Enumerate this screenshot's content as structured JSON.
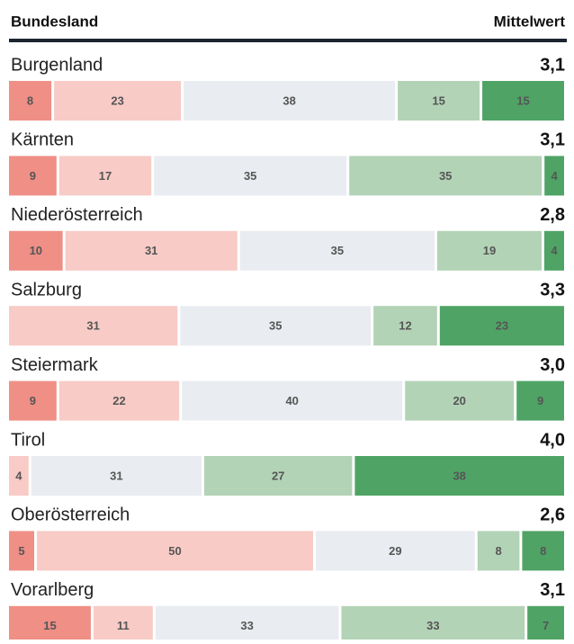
{
  "chart_data": {
    "type": "bar",
    "orientation": "horizontal",
    "stacked": true,
    "category_header": "Bundesland",
    "mean_header": "Mittelwert",
    "categories": [
      "Burgenland",
      "Kärnten",
      "Niederösterreich",
      "Salzburg",
      "Steiermark",
      "Tirol",
      "Oberösterreich",
      "Vorarlberg"
    ],
    "series": [
      {
        "color": "#ef8f86",
        "values": [
          8,
          9,
          10,
          null,
          9,
          null,
          5,
          15
        ]
      },
      {
        "color": "#f8cbc6",
        "values": [
          23,
          17,
          31,
          31,
          22,
          4,
          50,
          11
        ]
      },
      {
        "color": "#e9ecf0",
        "values": [
          38,
          35,
          35,
          35,
          40,
          31,
          29,
          33
        ]
      },
      {
        "color": "#b3d3b6",
        "values": [
          15,
          35,
          19,
          12,
          20,
          27,
          8,
          33
        ]
      },
      {
        "color": "#4fa465",
        "values": [
          15,
          4,
          4,
          23,
          9,
          38,
          8,
          7
        ]
      }
    ],
    "means": {
      "values": [
        3.1,
        3.1,
        2.8,
        3.3,
        3.0,
        4.0,
        2.6,
        3.1
      ],
      "value_labels": [
        "3,1",
        "3,1",
        "2,8",
        "3,3",
        "3,0",
        "4,0",
        "2,6",
        "3,1"
      ]
    }
  }
}
